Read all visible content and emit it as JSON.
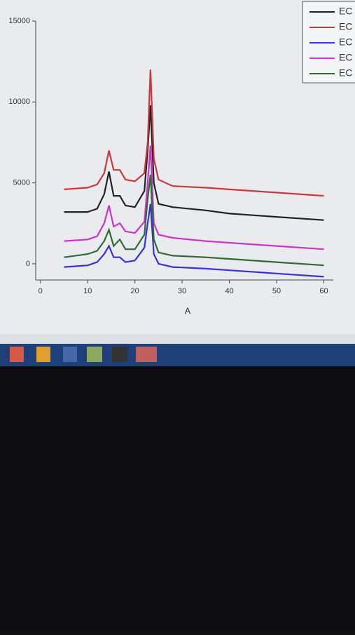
{
  "chart_data": {
    "type": "line",
    "x_label": "A",
    "x": [
      5,
      10,
      12,
      13.5,
      14.5,
      15.5,
      16.8,
      18,
      20,
      22,
      22.7,
      23.3,
      24,
      25,
      28,
      35,
      40,
      50,
      60
    ],
    "series": [
      {
        "name": "EC",
        "color": "#222222",
        "values": [
          3200,
          3200,
          3400,
          4300,
          5700,
          4200,
          4200,
          3600,
          3500,
          4500,
          7000,
          9800,
          5000,
          3700,
          3500,
          3300,
          3100,
          2900,
          2700
        ]
      },
      {
        "name": "EC",
        "color": "#c8383c",
        "values": [
          4600,
          4700,
          4900,
          5600,
          7000,
          5800,
          5800,
          5200,
          5100,
          5600,
          7500,
          12000,
          6500,
          5200,
          4800,
          4700,
          4600,
          4400,
          4200
        ]
      },
      {
        "name": "EC",
        "color": "#3a2fd8",
        "values": [
          -200,
          -100,
          100,
          600,
          1100,
          400,
          400,
          100,
          200,
          1000,
          2500,
          3700,
          600,
          0,
          -200,
          -300,
          -400,
          -600,
          -800
        ]
      },
      {
        "name": "EC",
        "color": "#cc33cc",
        "values": [
          1400,
          1500,
          1700,
          2500,
          3600,
          2300,
          2500,
          2000,
          1900,
          2600,
          5000,
          7300,
          2500,
          1800,
          1600,
          1400,
          1300,
          1100,
          900
        ]
      },
      {
        "name": "EC",
        "color": "#2e6b34",
        "values": [
          400,
          600,
          800,
          1400,
          2100,
          1100,
          1500,
          900,
          900,
          1800,
          4000,
          5500,
          1500,
          700,
          500,
          400,
          300,
          100,
          -100
        ]
      }
    ],
    "xlim": [
      -1,
      62
    ],
    "xticks": [
      0,
      10,
      20,
      30,
      40,
      50,
      60
    ],
    "ylim": [
      -1000,
      15000
    ],
    "yticks": [
      0,
      5000,
      10000,
      15000
    ],
    "grid": false
  }
}
